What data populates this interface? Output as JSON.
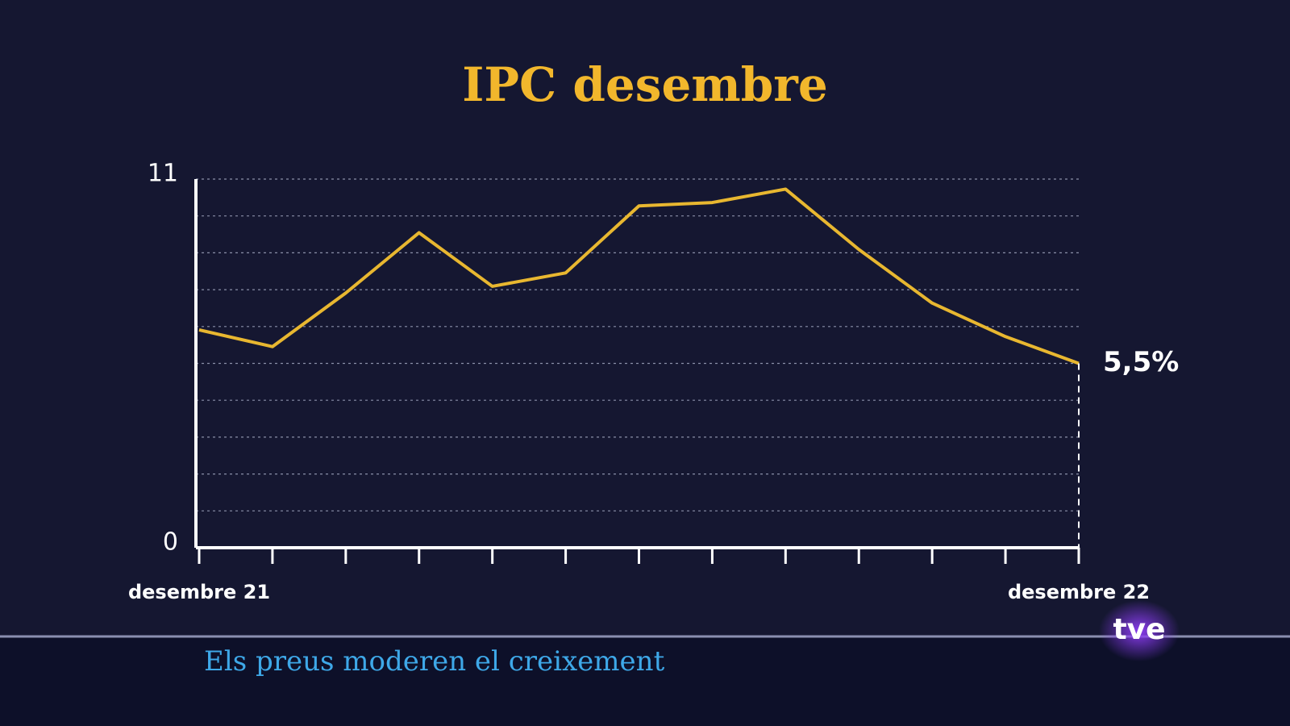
{
  "chart_data": {
    "type": "line",
    "title": "IPC desembre",
    "categories": [
      "desembre 21",
      null,
      null,
      null,
      null,
      null,
      null,
      null,
      null,
      null,
      null,
      null,
      "desembre 22"
    ],
    "series": [
      {
        "color": "#e8b730",
        "values": [
          6.5,
          6.0,
          7.6,
          9.4,
          7.8,
          8.2,
          10.2,
          10.3,
          10.7,
          8.9,
          7.3,
          6.3,
          5.5
        ],
        "value_labels": [
          null,
          null,
          null,
          null,
          null,
          null,
          null,
          null,
          null,
          null,
          null,
          null,
          "5,5%"
        ]
      }
    ],
    "ylim": [
      0,
      11
    ],
    "yticks": [
      0,
      11
    ],
    "grid": true
  },
  "caption": "Els preus moderen el creixement",
  "logo": "tve"
}
